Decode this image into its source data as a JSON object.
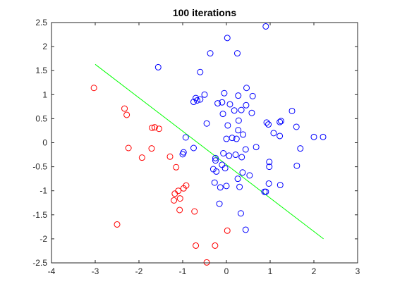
{
  "chart_data": {
    "type": "scatter",
    "title": "100 iterations",
    "xlabel": "",
    "ylabel": "",
    "xlim": [
      -4,
      3
    ],
    "ylim": [
      -2.5,
      2.5
    ],
    "xticks": [
      -4,
      -3,
      -2,
      -1,
      0,
      1,
      2,
      3
    ],
    "yticks": [
      -2.5,
      -2,
      -1.5,
      -1,
      -0.5,
      0,
      0.5,
      1,
      1.5,
      2,
      2.5
    ],
    "grid": false,
    "legend": "none",
    "series": [
      {
        "color": "#0000ff",
        "marker": "open-circle",
        "points": [
          [
            0.9,
            2.42
          ],
          [
            0.02,
            2.18
          ],
          [
            0.25,
            1.86
          ],
          [
            -0.37,
            1.86
          ],
          [
            -1.56,
            1.57
          ],
          [
            -0.6,
            1.47
          ],
          [
            0.46,
            1.14
          ],
          [
            -0.5,
            1.0
          ],
          [
            -0.7,
            0.93
          ],
          [
            -0.6,
            0.9
          ],
          [
            -0.67,
            0.88
          ],
          [
            -0.75,
            0.85
          ],
          [
            -0.05,
            1.03
          ],
          [
            0.27,
            0.98
          ],
          [
            0.6,
            0.97
          ],
          [
            -0.1,
            0.84
          ],
          [
            -0.2,
            0.82
          ],
          [
            0.08,
            0.8
          ],
          [
            0.45,
            0.78
          ],
          [
            0.18,
            0.67
          ],
          [
            0.34,
            0.68
          ],
          [
            0.58,
            0.62
          ],
          [
            -0.08,
            0.6
          ],
          [
            -0.45,
            0.4
          ],
          [
            0.28,
            0.46
          ],
          [
            0.03,
            0.36
          ],
          [
            0.96,
            0.38
          ],
          [
            0.92,
            0.42
          ],
          [
            1.25,
            0.45
          ],
          [
            1.22,
            0.43
          ],
          [
            1.5,
            0.66
          ],
          [
            1.6,
            0.33
          ],
          [
            0.27,
            0.26
          ],
          [
            0.38,
            0.17
          ],
          [
            1.08,
            0.2
          ],
          [
            1.22,
            0.14
          ],
          [
            2.0,
            0.12
          ],
          [
            2.21,
            0.12
          ],
          [
            0.13,
            0.1
          ],
          [
            0.23,
            0.08
          ],
          [
            0.0,
            0.08
          ],
          [
            -0.93,
            0.11
          ],
          [
            -0.75,
            -0.11
          ],
          [
            -0.98,
            -0.2
          ],
          [
            -1.0,
            -0.24
          ],
          [
            0.68,
            -0.09
          ],
          [
            0.44,
            -0.14
          ],
          [
            0.06,
            -0.27
          ],
          [
            0.21,
            -0.25
          ],
          [
            0.35,
            -0.3
          ],
          [
            -0.07,
            -0.22
          ],
          [
            -0.25,
            -0.32
          ],
          [
            -0.25,
            -0.37
          ],
          [
            1.69,
            -0.12
          ],
          [
            0.98,
            -0.4
          ],
          [
            0.98,
            -0.5
          ],
          [
            1.61,
            -0.48
          ],
          [
            -0.1,
            -0.46
          ],
          [
            -0.3,
            -0.55
          ],
          [
            -0.23,
            -0.6
          ],
          [
            -0.03,
            -0.53
          ],
          [
            0.37,
            -0.62
          ],
          [
            0.53,
            -0.68
          ],
          [
            0.26,
            -0.75
          ],
          [
            -0.27,
            -0.83
          ],
          [
            0.0,
            -0.9
          ],
          [
            -0.14,
            -0.93
          ],
          [
            0.3,
            -0.92
          ],
          [
            0.97,
            -0.85
          ],
          [
            1.23,
            -0.88
          ],
          [
            0.9,
            -1.02
          ],
          [
            0.87,
            -1.02
          ],
          [
            -0.16,
            -1.27
          ],
          [
            0.33,
            -1.47
          ],
          [
            0.44,
            -1.81
          ]
        ]
      },
      {
        "color": "#ff0000",
        "marker": "open-circle",
        "points": [
          [
            -3.03,
            1.14
          ],
          [
            -2.33,
            0.71
          ],
          [
            -2.28,
            0.58
          ],
          [
            -1.7,
            0.31
          ],
          [
            -1.64,
            0.32
          ],
          [
            -1.54,
            0.29
          ],
          [
            -2.24,
            -0.11
          ],
          [
            -1.71,
            -0.12
          ],
          [
            -1.93,
            -0.31
          ],
          [
            -1.29,
            -0.29
          ],
          [
            -1.15,
            -0.51
          ],
          [
            -0.92,
            -0.89
          ],
          [
            -0.98,
            -0.95
          ],
          [
            -1.1,
            -1.0
          ],
          [
            -1.18,
            -1.06
          ],
          [
            -1.06,
            -1.16
          ],
          [
            -1.2,
            -1.2
          ],
          [
            -1.07,
            -1.4
          ],
          [
            -0.73,
            -1.43
          ],
          [
            -2.5,
            -1.7
          ],
          [
            0.02,
            -1.83
          ],
          [
            -0.7,
            -2.14
          ],
          [
            -0.26,
            -2.14
          ],
          [
            -0.45,
            -2.49
          ]
        ]
      }
    ],
    "lines": [
      {
        "color": "#00ff00",
        "x": [
          -3.0,
          2.22
        ],
        "y": [
          1.63,
          -2.0
        ]
      }
    ]
  }
}
